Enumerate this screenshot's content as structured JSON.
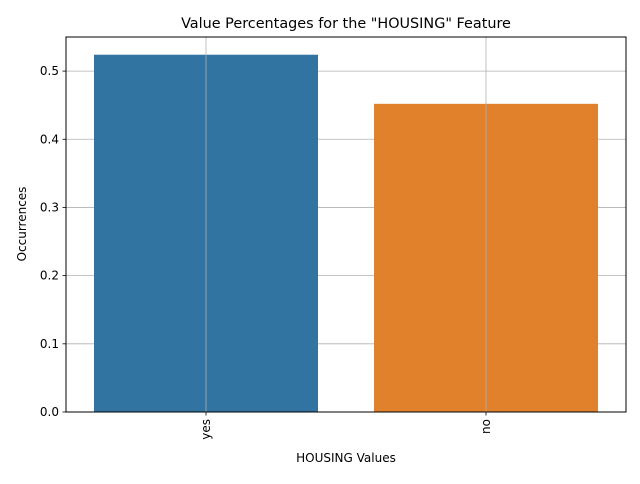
{
  "chart_data": {
    "type": "bar",
    "title": "Value Percentages for the \"HOUSING\" Feature",
    "xlabel": "HOUSING Values",
    "ylabel": "Occurrences",
    "categories": [
      "yes",
      "no"
    ],
    "values": [
      0.524,
      0.452
    ],
    "colors": [
      "#3274a1",
      "#e1812c"
    ],
    "ylim": [
      0,
      0.55
    ],
    "yticks": [
      0.0,
      0.1,
      0.2,
      0.3,
      0.4,
      0.5
    ],
    "ytick_labels": [
      "0.0",
      "0.1",
      "0.2",
      "0.3",
      "0.4",
      "0.5"
    ],
    "grid": true,
    "xtick_rotation": "vertical"
  }
}
